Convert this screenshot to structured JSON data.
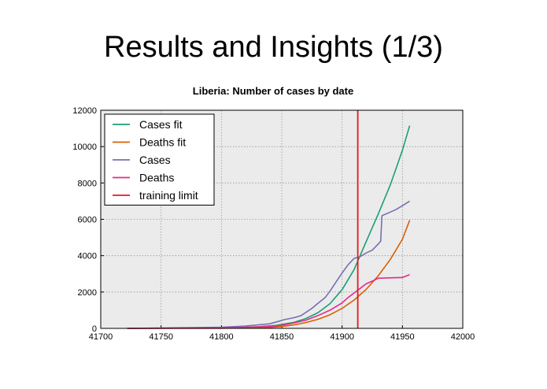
{
  "slide": {
    "title": "Results and Insights (1/3)"
  },
  "colors": {
    "plot_bg": "#ebebeb",
    "grid": "#9a9a9a",
    "cases_fit": "#1b9e77",
    "deaths_fit": "#d95f02",
    "cases": "#7570b3",
    "deaths": "#e7298a",
    "training_limit": "#e41a1c"
  },
  "chart_data": {
    "type": "line",
    "title": "Liberia: Number of cases by date",
    "xlabel": "",
    "ylabel": "",
    "xlim": [
      41700,
      42000
    ],
    "ylim": [
      0,
      12000
    ],
    "xticks": [
      "41700",
      "41750",
      "41800",
      "41850",
      "41900",
      "41950",
      "42000"
    ],
    "yticks": [
      "0",
      "2000",
      "4000",
      "6000",
      "8000",
      "10000",
      "12000"
    ],
    "grid": true,
    "legend_position": "top-left",
    "series": [
      {
        "name": "Cases fit",
        "color_key": "cases_fit",
        "x": [
          41722,
          41800,
          41830,
          41845,
          41860,
          41870,
          41880,
          41890,
          41900,
          41910,
          41920,
          41930,
          41940,
          41950,
          41956
        ],
        "y": [
          0,
          20,
          90,
          160,
          330,
          540,
          860,
          1360,
          2130,
          3240,
          4780,
          6300,
          7900,
          9800,
          11150
        ]
      },
      {
        "name": "Deaths fit",
        "color_key": "deaths_fit",
        "x": [
          41722,
          41800,
          41840,
          41850,
          41860,
          41870,
          41880,
          41890,
          41900,
          41910,
          41920,
          41930,
          41940,
          41950,
          41956
        ],
        "y": [
          0,
          10,
          50,
          100,
          190,
          320,
          500,
          750,
          1100,
          1560,
          2150,
          2900,
          3800,
          4900,
          5950
        ]
      },
      {
        "name": "Cases",
        "color_key": "cases",
        "x": [
          41722,
          41760,
          41800,
          41820,
          41840,
          41848,
          41852,
          41858,
          41862,
          41866,
          41870,
          41875,
          41880,
          41886,
          41890,
          41895,
          41900,
          41905,
          41910,
          41915,
          41920,
          41925,
          41930,
          41932,
          41933,
          41940,
          41945,
          41950,
          41956
        ],
        "y": [
          0,
          30,
          60,
          130,
          250,
          400,
          480,
          560,
          620,
          700,
          880,
          1100,
          1380,
          1700,
          2050,
          2550,
          3050,
          3500,
          3850,
          3950,
          4150,
          4300,
          4650,
          4800,
          6200,
          6400,
          6550,
          6750,
          7000
        ]
      },
      {
        "name": "Deaths",
        "color_key": "deaths",
        "x": [
          41722,
          41800,
          41840,
          41850,
          41860,
          41870,
          41880,
          41890,
          41900,
          41905,
          41910,
          41915,
          41920,
          41925,
          41930,
          41940,
          41950,
          41956
        ],
        "y": [
          0,
          20,
          100,
          170,
          300,
          450,
          700,
          1000,
          1400,
          1700,
          1950,
          2200,
          2450,
          2600,
          2760,
          2780,
          2800,
          2950
        ]
      }
    ],
    "vertical_lines": [
      {
        "name": "training limit",
        "color_key": "training_limit",
        "x": 41913
      }
    ]
  }
}
